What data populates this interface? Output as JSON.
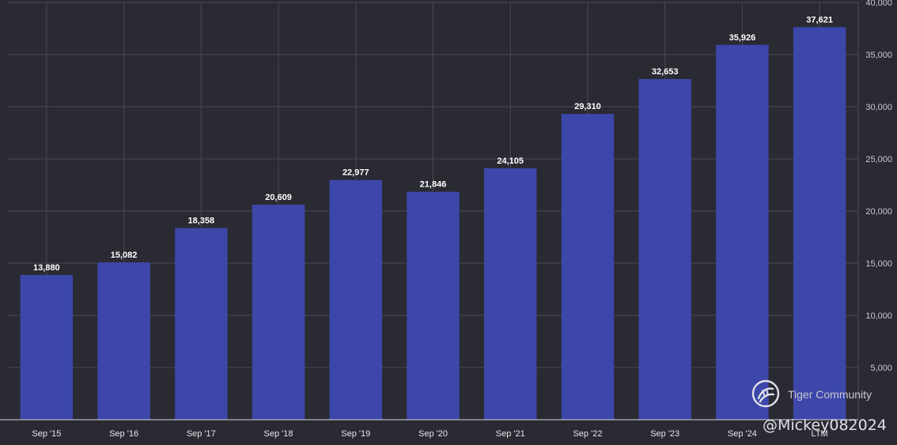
{
  "chart_data": {
    "type": "bar",
    "categories": [
      "Sep '15",
      "Sep '16",
      "Sep '17",
      "Sep '18",
      "Sep '19",
      "Sep '20",
      "Sep '21",
      "Sep '22",
      "Sep '23",
      "Sep '24",
      "LTM"
    ],
    "values": [
      13880,
      15082,
      18358,
      20609,
      22977,
      21846,
      24105,
      29310,
      32653,
      35926,
      37621
    ],
    "value_labels": [
      "13,880",
      "15,082",
      "18,358",
      "20,609",
      "22,977",
      "21,846",
      "24,105",
      "29,310",
      "32,653",
      "35,926",
      "37,621"
    ],
    "y_ticks": [
      5000,
      10000,
      15000,
      20000,
      25000,
      30000,
      35000,
      40000
    ],
    "y_tick_labels": [
      "5,000",
      "10,000",
      "15,000",
      "20,000",
      "25,000",
      "30,000",
      "35,000",
      "40,000"
    ],
    "ylim": [
      0,
      40000
    ],
    "grid": true,
    "y_axis_position": "right",
    "bar_color": "#3d47aa",
    "background_color": "#2a2a33",
    "title": "",
    "xlabel": "",
    "ylabel": ""
  },
  "watermark": {
    "brand": "Tiger Community",
    "handle": "@Mickey082024",
    "icon": "tiger-logo-icon"
  }
}
